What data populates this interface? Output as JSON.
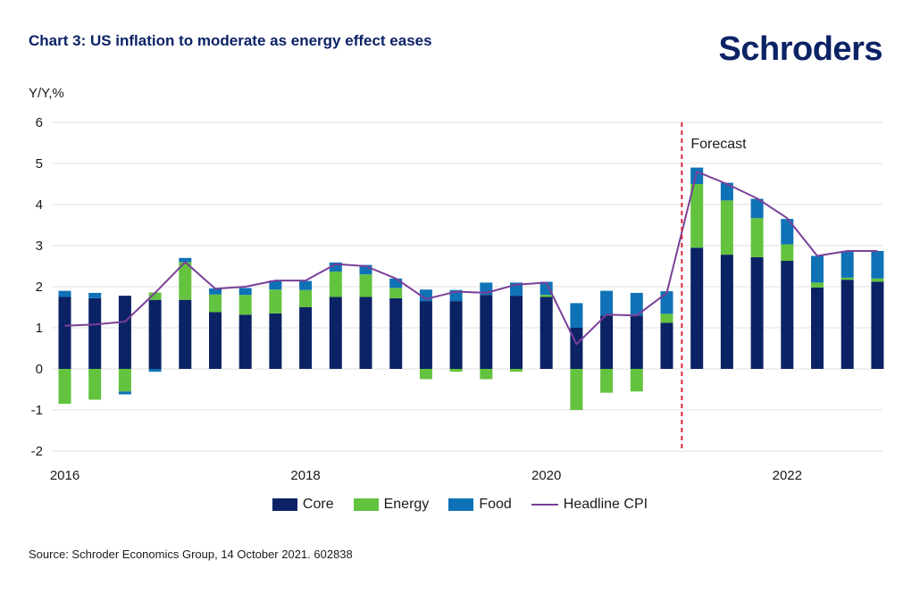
{
  "title": "Chart 3: US inflation to moderate as energy effect eases",
  "brand": "Schroders",
  "source": "Source: Schroder Economics Group, 14 October 2021. 602838",
  "colors": {
    "core": "#0b2265",
    "energy": "#63c33f",
    "food": "#0f72b6",
    "headline": "#7b3f98",
    "forecast_line": "#d9253b",
    "grid": "#e2e2e2"
  },
  "chart_data": {
    "type": "bar",
    "stacked": true,
    "ylabel": "Y/Y,%",
    "ylim": [
      -2,
      6
    ],
    "yticks": [
      "-2",
      "-1",
      "0",
      "1",
      "2",
      "3",
      "4",
      "5",
      "6"
    ],
    "x_tick_labels": [
      "2016",
      "2018",
      "2020",
      "2022"
    ],
    "categories": [
      "2016Q1",
      "2016Q2",
      "2016Q3",
      "2016Q4",
      "2017Q1",
      "2017Q2",
      "2017Q3",
      "2017Q4",
      "2018Q1",
      "2018Q2",
      "2018Q3",
      "2018Q4",
      "2019Q1",
      "2019Q2",
      "2019Q3",
      "2019Q4",
      "2020Q1",
      "2020Q2",
      "2020Q3",
      "2020Q4",
      "2021Q1",
      "2021Q2",
      "2021Q3",
      "2021Q4",
      "2022Q1",
      "2022Q2",
      "2022Q3",
      "2022Q4"
    ],
    "forecast_label": "Forecast",
    "forecast_start_index": 21,
    "series": [
      {
        "name": "Core",
        "values": [
          1.75,
          1.72,
          1.78,
          1.68,
          1.68,
          1.38,
          1.32,
          1.35,
          1.5,
          1.75,
          1.75,
          1.72,
          1.65,
          1.65,
          1.8,
          1.78,
          1.75,
          1.0,
          1.3,
          1.3,
          1.12,
          2.95,
          2.78,
          2.72,
          2.63,
          1.98,
          2.17,
          2.12
        ]
      },
      {
        "name": "Energy",
        "values": [
          -0.85,
          -0.75,
          -0.55,
          0.18,
          0.92,
          0.43,
          0.48,
          0.58,
          0.42,
          0.62,
          0.55,
          0.25,
          -0.25,
          -0.07,
          -0.25,
          -0.07,
          0.05,
          -1.0,
          -0.58,
          -0.55,
          0.22,
          1.55,
          1.32,
          0.95,
          0.4,
          0.12,
          0.05,
          0.08
        ]
      },
      {
        "name": "Food",
        "values": [
          0.15,
          0.13,
          -0.07,
          -0.07,
          0.1,
          0.15,
          0.17,
          0.22,
          0.22,
          0.22,
          0.23,
          0.23,
          0.28,
          0.27,
          0.3,
          0.32,
          0.32,
          0.6,
          0.6,
          0.55,
          0.55,
          0.4,
          0.43,
          0.47,
          0.62,
          0.65,
          0.65,
          0.67
        ]
      },
      {
        "name": "Headline CPI",
        "type": "line",
        "values": [
          1.05,
          1.08,
          1.15,
          1.85,
          2.6,
          1.95,
          2.0,
          2.15,
          2.15,
          2.55,
          2.5,
          2.2,
          1.7,
          1.88,
          1.85,
          2.05,
          2.1,
          0.6,
          1.32,
          1.3,
          1.85,
          4.8,
          4.5,
          4.15,
          3.67,
          2.75,
          2.87,
          2.87
        ]
      }
    ]
  }
}
